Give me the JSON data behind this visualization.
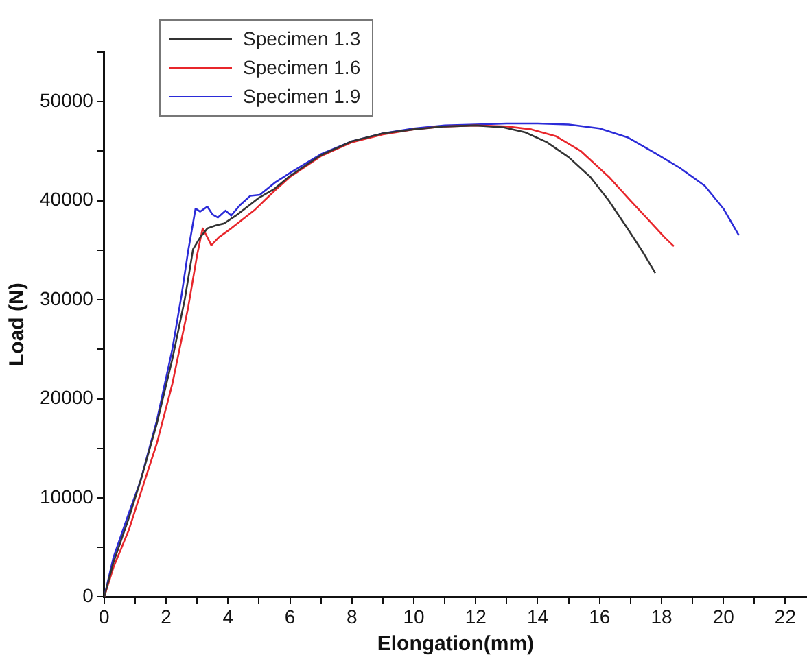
{
  "chart_data": {
    "type": "line",
    "xlabel": "Elongation(mm)",
    "ylabel": "Load (N)",
    "xlim": [
      0,
      22.7
    ],
    "ylim": [
      0,
      55000
    ],
    "xticks": [
      0,
      {
        "value": 1,
        "label": null
      },
      2,
      {
        "value": 3,
        "label": null
      },
      4,
      {
        "value": 5,
        "label": null
      },
      6,
      {
        "value": 7,
        "label": null
      },
      8,
      {
        "value": 9,
        "label": null
      },
      10,
      {
        "value": 11,
        "label": null
      },
      12,
      {
        "value": 13,
        "label": null
      },
      14,
      {
        "value": 15,
        "label": null
      },
      16,
      {
        "value": 17,
        "label": null
      },
      18,
      {
        "value": 19,
        "label": null
      },
      20,
      {
        "value": 21,
        "label": null
      },
      22
    ],
    "yticks": [
      0,
      {
        "value": 5000,
        "label": null
      },
      10000,
      {
        "value": 15000,
        "label": null
      },
      20000,
      {
        "value": 25000,
        "label": null
      },
      30000,
      {
        "value": 35000,
        "label": null
      },
      40000,
      {
        "value": 45000,
        "label": null
      },
      50000,
      {
        "value": 55000,
        "label": null
      }
    ],
    "grid": false,
    "legend": "top left",
    "marker": "none",
    "line_style": "solid",
    "series": [
      {
        "name": "Specimen 1.3",
        "color": "#333333",
        "x": [
          0,
          0.3,
          0.8,
          1.2,
          1.7,
          2.2,
          2.6,
          2.87,
          3.1,
          3.33,
          3.6,
          3.87,
          4.3,
          5.0,
          5.5,
          6,
          7,
          8,
          9,
          10,
          11,
          12,
          12.9,
          13.6,
          14.3,
          15,
          15.7,
          16.3,
          16.9,
          17.4,
          17.8
        ],
        "values": [
          0,
          3500,
          8000,
          12000,
          17500,
          24000,
          30000,
          35100,
          36300,
          37200,
          37500,
          37700,
          38600,
          40300,
          41200,
          42500,
          44600,
          46000,
          46800,
          47200,
          47500,
          47600,
          47400,
          46900,
          45900,
          44400,
          42400,
          40000,
          37200,
          34800,
          32700
        ]
      },
      {
        "name": "Specimen 1.6",
        "color": "#e8262b",
        "x": [
          0,
          0.3,
          0.8,
          1.17,
          1.7,
          2.2,
          2.71,
          3.0,
          3.18,
          3.3,
          3.46,
          3.7,
          4.1,
          4.87,
          5.5,
          6,
          7,
          8,
          9,
          10,
          11,
          12,
          13,
          13.8,
          14.6,
          15.4,
          16.3,
          17.0,
          17.6,
          18.1,
          18.4
        ],
        "values": [
          0,
          3000,
          6800,
          10400,
          15500,
          21500,
          29200,
          34500,
          37200,
          36500,
          35500,
          36300,
          37200,
          39100,
          41000,
          42400,
          44500,
          45900,
          46700,
          47200,
          47500,
          47600,
          47500,
          47200,
          46500,
          45000,
          42400,
          40000,
          38000,
          36300,
          35400
        ]
      },
      {
        "name": "Specimen 1.9",
        "color": "#2b2bd8",
        "x": [
          0,
          0.3,
          0.8,
          1.17,
          1.7,
          2.2,
          2.5,
          2.71,
          2.95,
          3.1,
          3.33,
          3.5,
          3.67,
          3.92,
          4.1,
          4.4,
          4.72,
          5.03,
          5.5,
          6,
          7,
          8,
          9,
          10,
          11,
          12,
          13,
          14,
          15,
          16,
          16.9,
          17.8,
          18.6,
          19.4,
          20.0,
          20.5
        ],
        "values": [
          0,
          4000,
          8500,
          11700,
          17800,
          25000,
          30500,
          34900,
          39200,
          38900,
          39400,
          38600,
          38300,
          39000,
          38500,
          39600,
          40500,
          40600,
          41800,
          42800,
          44700,
          46000,
          46800,
          47300,
          47600,
          47700,
          47800,
          47800,
          47700,
          47300,
          46400,
          44800,
          43300,
          41500,
          39200,
          36500
        ]
      }
    ]
  }
}
